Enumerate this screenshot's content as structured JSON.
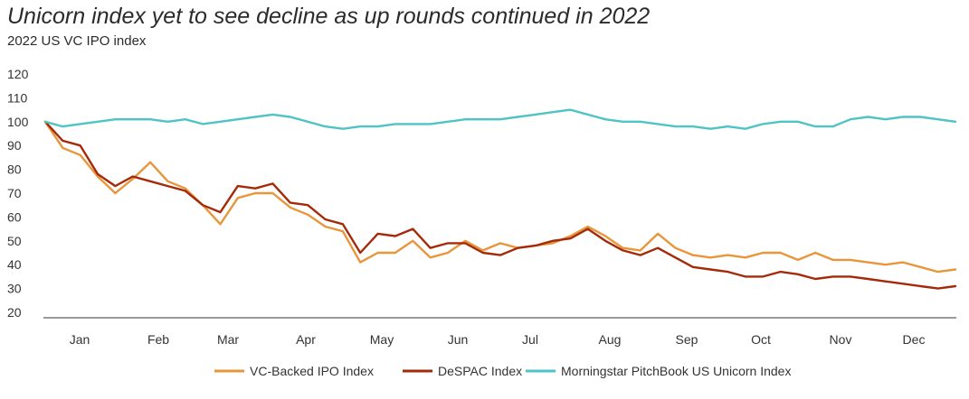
{
  "chart_data": {
    "type": "line",
    "title": "Unicorn index yet to see decline as up rounds continued in 2022",
    "subtitle": "2022 US VC IPO index",
    "xlabel": "",
    "ylabel": "",
    "ylim": [
      20,
      120
    ],
    "yticks": [
      "120",
      "110",
      "100",
      "90",
      "80",
      "70",
      "60",
      "50",
      "40",
      "30",
      "20"
    ],
    "xticks": [
      "Jan",
      "Feb",
      "Mar",
      "Apr",
      "May",
      "Jun",
      "Jul",
      "Aug",
      "Sep",
      "Oct",
      "Nov",
      "Dec"
    ],
    "x": [
      "Jan 3",
      "Jan 7",
      "Jan 14",
      "Jan 21",
      "Jan 28",
      "Feb 4",
      "Feb 11",
      "Feb 18",
      "Feb 25",
      "Mar 4",
      "Mar 11",
      "Mar 18",
      "Mar 25",
      "Apr 1",
      "Apr 8",
      "Apr 15",
      "Apr 22",
      "Apr 29",
      "May 6",
      "May 13",
      "May 20",
      "May 27",
      "Jun 3",
      "Jun 10",
      "Jun 17",
      "Jun 24",
      "Jul 1",
      "Jul 8",
      "Jul 15",
      "Jul 22",
      "Jul 29",
      "Aug 5",
      "Aug 12",
      "Aug 19",
      "Aug 26",
      "Sep 2",
      "Sep 9",
      "Sep 16",
      "Sep 23",
      "Sep 30",
      "Oct 7",
      "Oct 14",
      "Oct 21",
      "Oct 28",
      "Nov 4",
      "Nov 11",
      "Nov 18",
      "Nov 25",
      "Dec 2",
      "Dec 9",
      "Dec 16",
      "Dec 23",
      "Dec 30"
    ],
    "series": [
      {
        "name": "VC-Backed IPO Index",
        "color": "#E8963A",
        "values": [
          100,
          89,
          86,
          77,
          70,
          76,
          83,
          75,
          72,
          65,
          57,
          68,
          70,
          70,
          64,
          61,
          56,
          54,
          41,
          45,
          45,
          50,
          43,
          45,
          50,
          46,
          49,
          47,
          48,
          49,
          52,
          56,
          52,
          47,
          46,
          53,
          47,
          44,
          43,
          44,
          43,
          45,
          45,
          42,
          45,
          42,
          42,
          41,
          40,
          41,
          39,
          37,
          38
        ]
      },
      {
        "name": "DeSPAC Index",
        "color": "#A52A0A",
        "values": [
          100,
          92,
          90,
          78,
          73,
          77,
          75,
          73,
          71,
          65,
          62,
          73,
          72,
          74,
          66,
          65,
          59,
          57,
          45,
          53,
          52,
          55,
          47,
          49,
          49,
          45,
          44,
          47,
          48,
          50,
          51,
          55,
          50,
          46,
          44,
          47,
          43,
          39,
          38,
          37,
          35,
          35,
          37,
          36,
          34,
          35,
          35,
          34,
          33,
          32,
          31,
          30,
          31
        ]
      },
      {
        "name": "Morningstar PitchBook US Unicorn Index",
        "color": "#4FC3C6",
        "values": [
          100,
          98,
          99,
          100,
          101,
          101,
          101,
          100,
          101,
          99,
          100,
          101,
          102,
          103,
          102,
          100,
          98,
          97,
          98,
          98,
          99,
          99,
          99,
          100,
          101,
          101,
          101,
          102,
          103,
          104,
          105,
          103,
          101,
          100,
          100,
          99,
          98,
          98,
          97,
          98,
          97,
          99,
          100,
          100,
          98,
          98,
          101,
          102,
          101,
          102,
          102,
          101,
          100
        ]
      }
    ],
    "legend_position": "bottom-center",
    "grid": false
  }
}
